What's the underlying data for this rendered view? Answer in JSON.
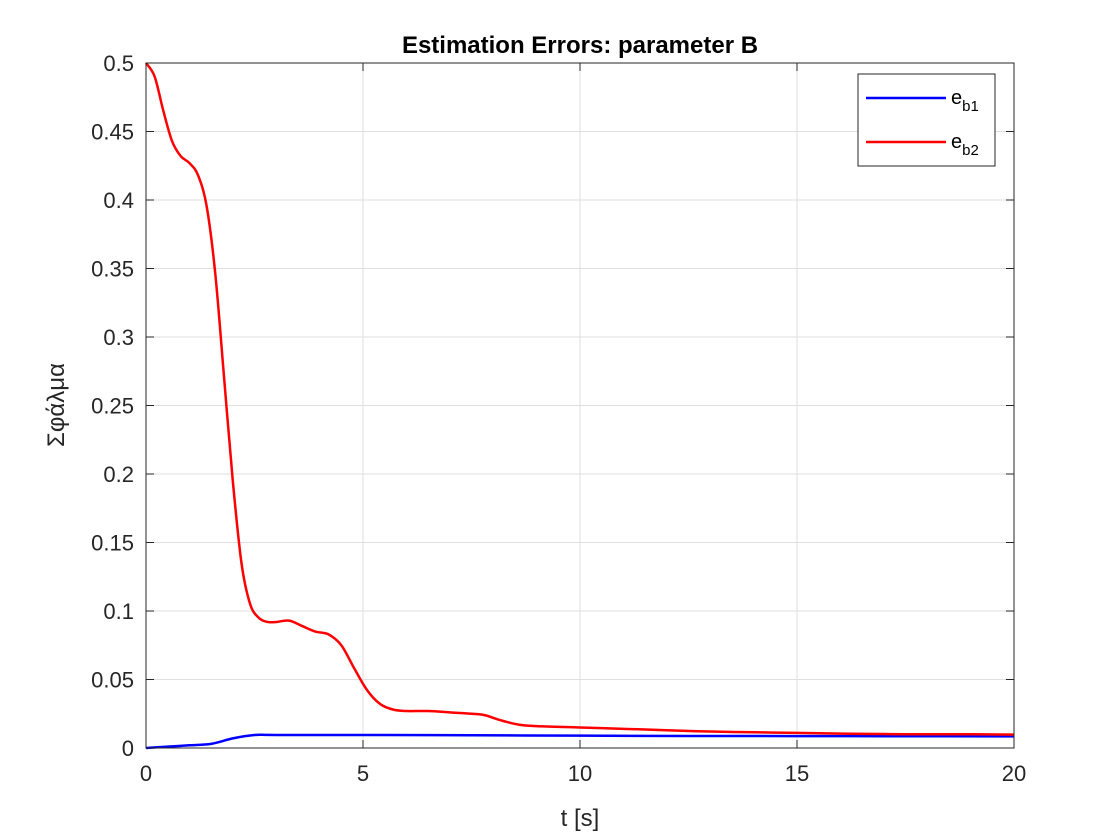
{
  "chart_data": {
    "type": "line",
    "title": "Estimation Errors: parameter B",
    "xlabel": "t [s]",
    "ylabel": "Σφάλμα",
    "xlim": [
      0,
      20
    ],
    "ylim": [
      0,
      0.5
    ],
    "xticks": [
      0,
      5,
      10,
      15,
      20
    ],
    "xtick_labels": [
      "0",
      "5",
      "10",
      "15",
      "20"
    ],
    "yticks": [
      0,
      0.05,
      0.1,
      0.15,
      0.2,
      0.25,
      0.3,
      0.35,
      0.4,
      0.45,
      0.5
    ],
    "ytick_labels": [
      "0",
      "0.05",
      "0.1",
      "0.15",
      "0.2",
      "0.25",
      "0.3",
      "0.35",
      "0.4",
      "0.45",
      "0.5"
    ],
    "grid": true,
    "legend_position": "top-right",
    "series": [
      {
        "name": "e_b1",
        "legend_main": "e",
        "legend_sub": "b1",
        "color": "#0000ff",
        "x": [
          0,
          0.5,
          1.0,
          1.5,
          2.0,
          2.5,
          3.0,
          5.0,
          7.5,
          10.0,
          12.5,
          15.0,
          17.5,
          20.0
        ],
        "y": [
          0,
          0.001,
          0.002,
          0.003,
          0.007,
          0.0095,
          0.0095,
          0.0095,
          0.0093,
          0.009,
          0.0088,
          0.0087,
          0.0086,
          0.0085
        ]
      },
      {
        "name": "e_b2",
        "legend_main": "e",
        "legend_sub": "b2",
        "color": "#ff0000",
        "x": [
          0,
          0.2,
          0.4,
          0.6,
          0.8,
          1.0,
          1.2,
          1.4,
          1.6,
          1.8,
          2.0,
          2.2,
          2.4,
          2.6,
          2.8,
          3.0,
          3.3,
          3.6,
          3.9,
          4.2,
          4.5,
          4.8,
          5.1,
          5.4,
          5.7,
          6.0,
          6.5,
          7.0,
          7.5,
          7.8,
          8.2,
          8.6,
          9.0,
          10.0,
          11.0,
          12.0,
          13.0,
          14.0,
          15.0,
          16.0,
          17.0,
          18.0,
          19.0,
          20.0
        ],
        "y": [
          0.5,
          0.49,
          0.465,
          0.443,
          0.432,
          0.427,
          0.418,
          0.395,
          0.345,
          0.27,
          0.195,
          0.135,
          0.105,
          0.095,
          0.092,
          0.092,
          0.093,
          0.089,
          0.085,
          0.083,
          0.075,
          0.058,
          0.042,
          0.032,
          0.028,
          0.027,
          0.027,
          0.026,
          0.025,
          0.024,
          0.02,
          0.017,
          0.016,
          0.015,
          0.014,
          0.013,
          0.012,
          0.0115,
          0.011,
          0.0105,
          0.0102,
          0.01,
          0.01,
          0.0098
        ]
      }
    ]
  }
}
